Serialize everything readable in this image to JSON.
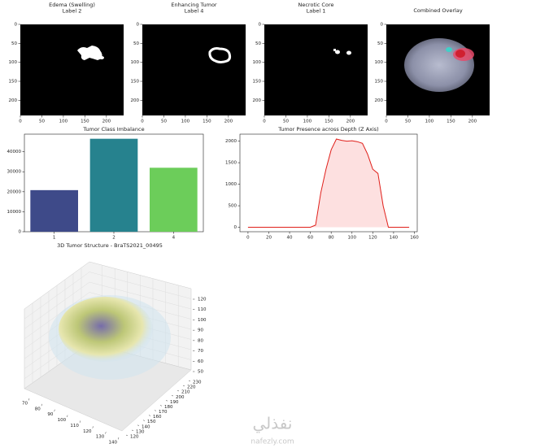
{
  "chart_data": [
    {
      "type": "image",
      "title": [
        "Edema (Swelling)",
        "Label 2"
      ],
      "xlim": [
        0,
        240
      ],
      "ylim": [
        240,
        0
      ],
      "xticks": [
        0,
        50,
        100,
        150,
        200
      ],
      "yticks": [
        0,
        50,
        100,
        150,
        200
      ]
    },
    {
      "type": "image",
      "title": [
        "Enhancing Tumor",
        "Label 4"
      ],
      "xlim": [
        0,
        240
      ],
      "ylim": [
        240,
        0
      ],
      "xticks": [
        0,
        50,
        100,
        150,
        200
      ],
      "yticks": [
        0,
        50,
        100,
        150,
        200
      ]
    },
    {
      "type": "image",
      "title": [
        "Necrotic Core",
        "Label 1"
      ],
      "xlim": [
        0,
        240
      ],
      "ylim": [
        240,
        0
      ],
      "xticks": [
        0,
        50,
        100,
        150,
        200
      ],
      "yticks": [
        0,
        50,
        100,
        150,
        200
      ]
    },
    {
      "type": "image",
      "title": [
        "Combined Overlay"
      ],
      "xlim": [
        0,
        240
      ],
      "ylim": [
        240,
        0
      ],
      "xticks": [
        0,
        50,
        100,
        150,
        200
      ],
      "yticks": [
        0,
        50,
        100,
        150,
        200
      ]
    },
    {
      "type": "bar",
      "title": "Tumor Class Imbalance",
      "categories": [
        "1",
        "2",
        "4"
      ],
      "values": [
        20800,
        46500,
        32000
      ],
      "colors": [
        "#3e4a89",
        "#26828e",
        "#6ccd5a"
      ],
      "ylim": [
        0,
        48800
      ],
      "yticks": [
        0,
        10000,
        20000,
        30000,
        40000
      ]
    },
    {
      "type": "line",
      "title": "Tumor Presence across Depth (Z Axis)",
      "color": "#e0201b",
      "fill": "#fde0e0",
      "x": [
        0,
        5,
        10,
        15,
        20,
        25,
        30,
        35,
        40,
        45,
        50,
        55,
        60,
        65,
        70,
        75,
        80,
        85,
        90,
        95,
        100,
        105,
        110,
        115,
        120,
        125,
        130,
        135,
        140,
        145,
        150,
        155
      ],
      "values": [
        0,
        0,
        0,
        0,
        0,
        0,
        0,
        0,
        0,
        0,
        0,
        0,
        0,
        50,
        800,
        1350,
        1800,
        2050,
        2020,
        2000,
        2010,
        1990,
        1950,
        1700,
        1350,
        1250,
        500,
        0,
        0,
        0,
        0,
        0
      ],
      "xlim": [
        -7.75,
        162.75
      ],
      "ylim": [
        -103,
        2163
      ],
      "xticks": [
        0,
        20,
        40,
        60,
        80,
        100,
        120,
        140,
        160
      ],
      "yticks": [
        0,
        500,
        1000,
        1500,
        2000
      ]
    },
    {
      "type": "scatter3d",
      "title": "3D Tumor Structure - BraTS2021_00495",
      "xticks": [
        70,
        80,
        90,
        100,
        110,
        120,
        130,
        140
      ],
      "yticks": [
        120,
        130,
        140,
        150,
        160,
        170,
        180,
        190,
        200,
        210,
        220,
        230
      ],
      "zticks": [
        50,
        60,
        70,
        80,
        90,
        100,
        110,
        120
      ]
    }
  ],
  "watermark": {
    "logo": "نفذلي",
    "site": "nafezly.com"
  }
}
